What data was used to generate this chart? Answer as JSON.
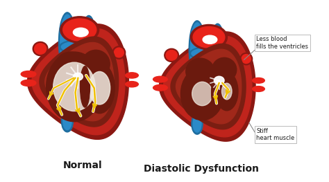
{
  "background_color": "#ffffff",
  "title_left": "Normal",
  "title_right": "Diastolic Dysfunction",
  "title_fontsize": 10,
  "title_fontweight": "bold",
  "annotation_1": "Less blood\nfills the ventricles",
  "annotation_2": "Stiff\nheart muscle",
  "annotation_fontsize": 6.0,
  "fig_width": 4.74,
  "fig_height": 2.63,
  "dpi": 100,
  "colors": {
    "bg": "#ffffff",
    "heart_red_bright": "#E8231A",
    "heart_red_mid": "#C0241C",
    "heart_red_dark": "#8B1812",
    "heart_brown_dark": "#7A1E12",
    "heart_brown_mid": "#A0281A",
    "blue_bright": "#2B8AC8",
    "blue_mid": "#1E6EA0",
    "blue_dark": "#1A5A8A",
    "chamber_dark": "#6B1A0E",
    "chamber_mid": "#8C2014",
    "inner_white": "#F0EAE0",
    "inner_gray": "#D8CCC0",
    "nerve_yellow": "#F0C000",
    "nerve_white": "#FFFFFF",
    "text_dark": "#1A1A1A",
    "ann_line": "#888888",
    "ann_box_edge": "#BBBBBB"
  }
}
